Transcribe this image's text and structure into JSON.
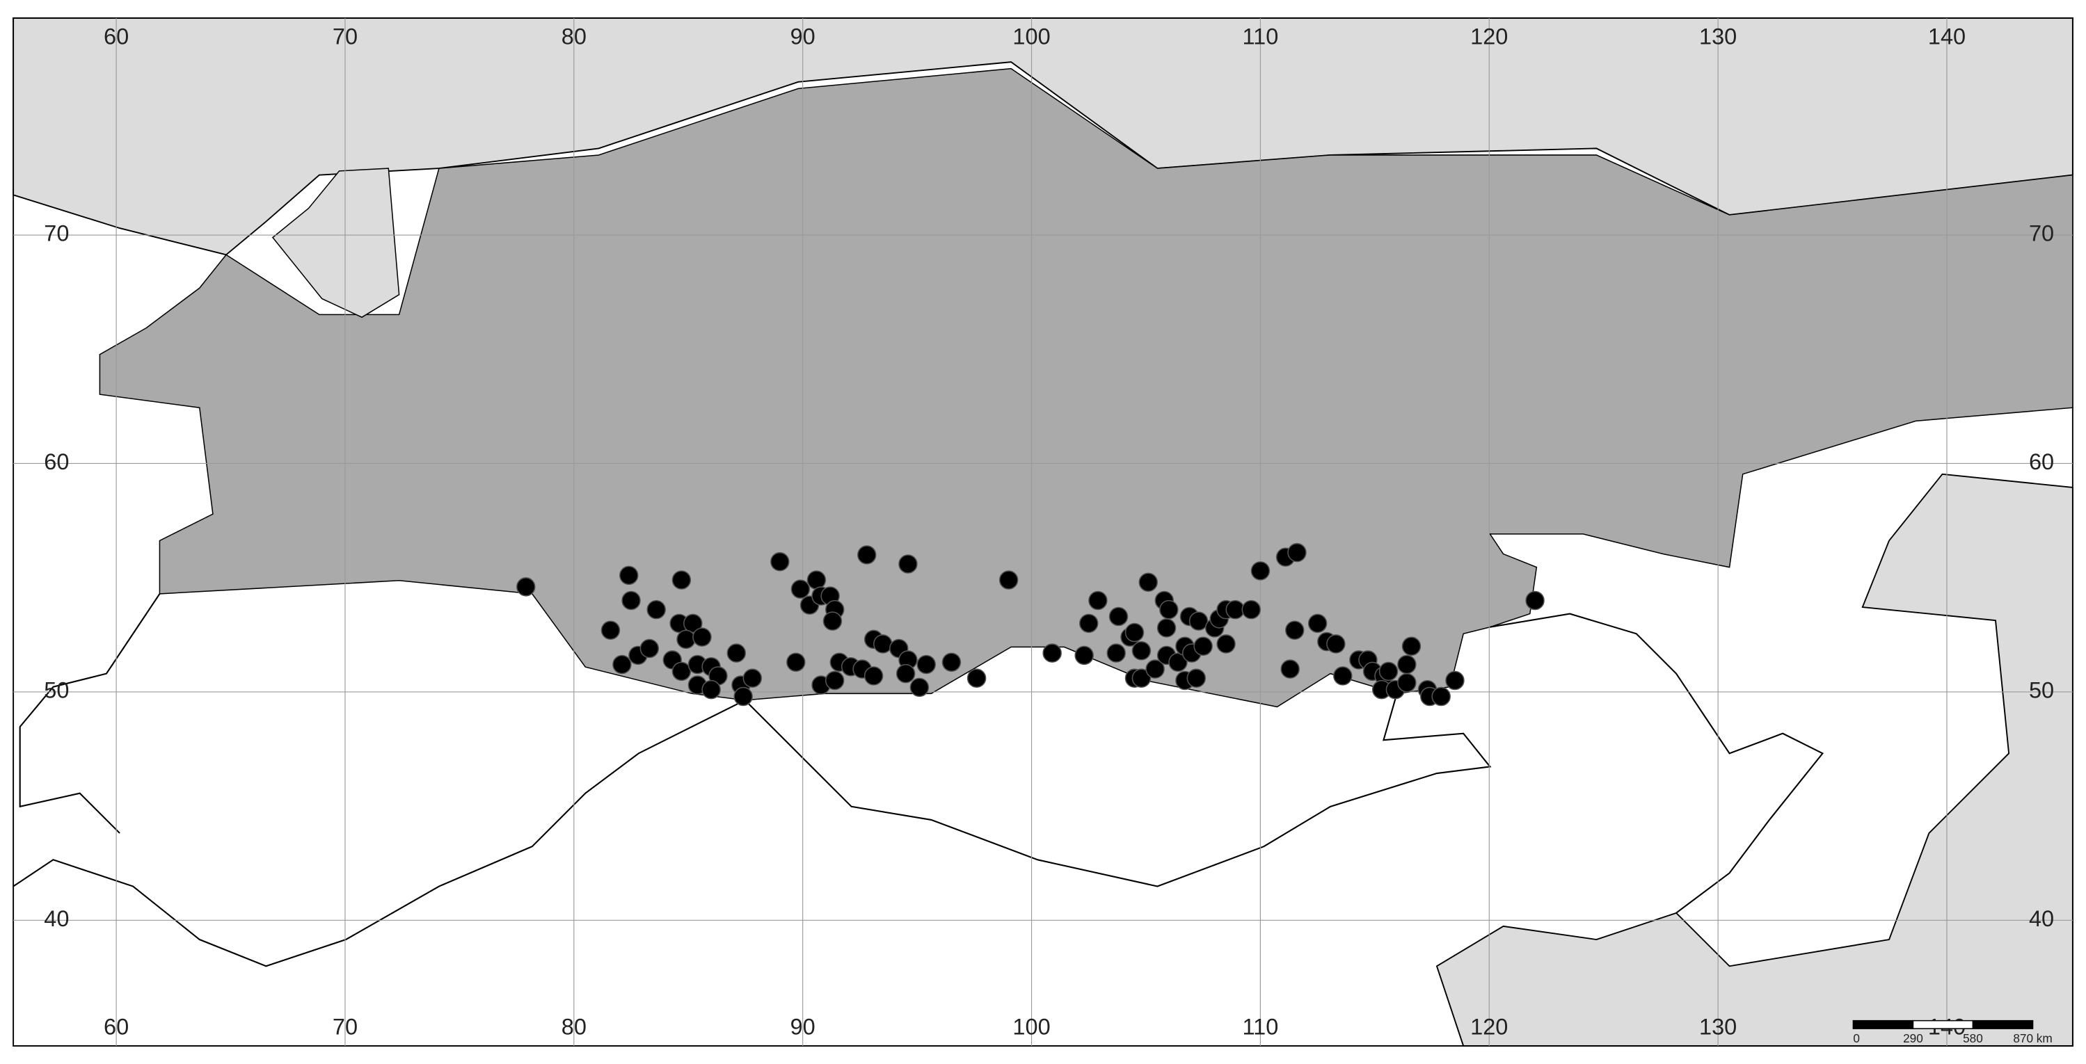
{
  "chart_data": {
    "type": "scatter",
    "x": [
      77.9,
      82.4,
      82.5,
      81.6,
      82.1,
      82.8,
      83.3,
      83.6,
      84.7,
      84.6,
      85.2,
      84.9,
      85.6,
      84.3,
      84.7,
      85.4,
      86.0,
      86.3,
      85.4,
      86.0,
      87.1,
      87.3,
      87.8,
      87.4,
      89.0,
      89.7,
      89.9,
      90.3,
      90.6,
      90.8,
      91.2,
      91.4,
      91.3,
      90.8,
      91.4,
      91.6,
      92.1,
      92.6,
      92.8,
      93.1,
      93.5,
      93.1,
      94.2,
      94.6,
      95.4,
      94.6,
      94.5,
      95.1,
      96.5,
      97.6,
      99.0,
      100.9,
      102.3,
      102.5,
      102.9,
      103.7,
      103.8,
      104.3,
      104.5,
      104.8,
      104.5,
      104.8,
      105.1,
      105.4,
      105.8,
      106.0,
      105.9,
      105.9,
      106.4,
      106.7,
      107.0,
      106.9,
      107.3,
      106.7,
      107.2,
      107.5,
      108.0,
      108.2,
      108.5,
      108.9,
      108.5,
      109.6,
      110.0,
      111.1,
      111.6,
      111.3,
      111.5,
      112.5,
      112.9,
      113.3,
      113.6,
      114.3,
      114.7,
      114.9,
      115.4,
      115.6,
      115.3,
      115.9,
      116.4,
      116.6,
      116.4,
      117.3,
      117.4,
      117.9,
      118.5,
      122.0
    ],
    "values": [
      54.6,
      55.1,
      54.0,
      52.7,
      51.2,
      51.6,
      51.9,
      53.6,
      54.9,
      53.0,
      53.0,
      52.3,
      52.4,
      51.4,
      50.9,
      51.2,
      51.1,
      50.7,
      50.3,
      50.1,
      51.7,
      50.3,
      50.6,
      49.8,
      55.7,
      51.3,
      54.5,
      53.8,
      54.9,
      54.2,
      54.2,
      53.6,
      53.1,
      50.3,
      50.5,
      51.3,
      51.1,
      51.0,
      56.0,
      52.3,
      52.1,
      50.7,
      51.9,
      51.4,
      51.2,
      55.6,
      50.8,
      50.2,
      51.3,
      50.6,
      54.9,
      51.7,
      51.6,
      53.0,
      54.0,
      51.7,
      53.3,
      52.4,
      52.6,
      51.8,
      50.6,
      50.6,
      54.8,
      51.0,
      54.0,
      53.6,
      52.8,
      51.6,
      51.3,
      52.0,
      51.7,
      53.3,
      53.1,
      50.5,
      50.6,
      52.0,
      52.8,
      53.2,
      53.6,
      53.6,
      52.1,
      53.6,
      55.3,
      55.9,
      56.1,
      51.0,
      52.7,
      53.0,
      52.2,
      52.1,
      50.7,
      51.4,
      51.4,
      50.9,
      50.7,
      50.9,
      50.1,
      50.1,
      51.2,
      52.0,
      50.4,
      50.1,
      49.8,
      49.8,
      50.5,
      54.0
    ],
    "color": "#000000",
    "xlim": [
      55.5,
      145.5
    ],
    "ylim": [
      34.5,
      79.5
    ],
    "xticks": [
      60,
      70,
      80,
      90,
      100,
      110,
      120,
      130,
      140
    ],
    "yticks": [
      40,
      50,
      60,
      70
    ],
    "grid": true,
    "scale_bar_labels": [
      "0",
      "290",
      "580",
      "870 km"
    ]
  }
}
